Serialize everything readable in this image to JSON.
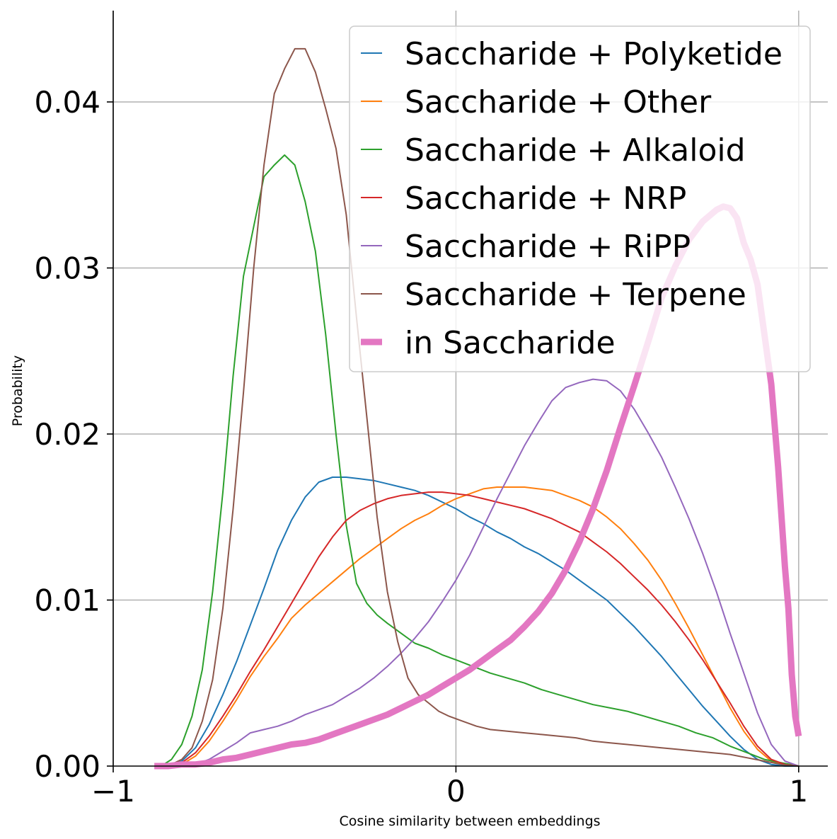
{
  "chart_data": {
    "type": "line",
    "xlabel": "Cosine similarity between embeddings",
    "ylabel": "Probability",
    "xlim": [
      -1,
      1.085
    ],
    "ylim": [
      0,
      0.0455
    ],
    "xticks": [
      {
        "v": -1,
        "label": "−1"
      },
      {
        "v": 0,
        "label": "0"
      },
      {
        "v": 1,
        "label": "1"
      }
    ],
    "yticks": [
      {
        "v": 0,
        "label": "0.00"
      },
      {
        "v": 0.01,
        "label": "0.01"
      },
      {
        "v": 0.02,
        "label": "0.02"
      },
      {
        "v": 0.03,
        "label": "0.03"
      },
      {
        "v": 0.04,
        "label": "0.04"
      }
    ],
    "grid": true,
    "legend_position": "top-right",
    "series": [
      {
        "name": "Saccharide + Polyketide",
        "color": "#1f77b4",
        "width": 2,
        "x": [
          -0.88,
          -0.84,
          -0.8,
          -0.76,
          -0.72,
          -0.68,
          -0.64,
          -0.6,
          -0.56,
          -0.52,
          -0.48,
          -0.44,
          -0.4,
          -0.36,
          -0.32,
          -0.28,
          -0.24,
          -0.2,
          -0.16,
          -0.12,
          -0.08,
          -0.04,
          0,
          0.04,
          0.08,
          0.12,
          0.16,
          0.2,
          0.24,
          0.28,
          0.32,
          0.36,
          0.4,
          0.44,
          0.48,
          0.52,
          0.56,
          0.6,
          0.64,
          0.68,
          0.72,
          0.76,
          0.8,
          0.84,
          0.88,
          0.92,
          0.96,
          1.0
        ],
        "y": [
          0,
          0,
          0.0003,
          0.0011,
          0.0025,
          0.0043,
          0.0063,
          0.0085,
          0.0107,
          0.013,
          0.0148,
          0.0162,
          0.0171,
          0.0174,
          0.0174,
          0.0173,
          0.0172,
          0.017,
          0.0168,
          0.0166,
          0.0163,
          0.0159,
          0.0155,
          0.015,
          0.0146,
          0.0141,
          0.0137,
          0.0132,
          0.0128,
          0.0123,
          0.0118,
          0.0112,
          0.0106,
          0.01,
          0.0092,
          0.0084,
          0.0075,
          0.0066,
          0.0056,
          0.0046,
          0.0036,
          0.0027,
          0.0018,
          0.001,
          0.0004,
          0.0001,
          0,
          0
        ]
      },
      {
        "name": "Saccharide + Other",
        "color": "#ff7f0e",
        "width": 2,
        "x": [
          -0.88,
          -0.84,
          -0.8,
          -0.76,
          -0.72,
          -0.68,
          -0.64,
          -0.6,
          -0.56,
          -0.52,
          -0.48,
          -0.44,
          -0.4,
          -0.36,
          -0.32,
          -0.28,
          -0.24,
          -0.2,
          -0.16,
          -0.12,
          -0.08,
          -0.04,
          0,
          0.04,
          0.08,
          0.12,
          0.16,
          0.2,
          0.24,
          0.28,
          0.32,
          0.36,
          0.4,
          0.44,
          0.48,
          0.52,
          0.56,
          0.6,
          0.64,
          0.68,
          0.72,
          0.76,
          0.8,
          0.84,
          0.88,
          0.92,
          0.96,
          1.0
        ],
        "y": [
          0,
          0,
          0.0001,
          0.0006,
          0.0015,
          0.0027,
          0.004,
          0.0054,
          0.0066,
          0.0077,
          0.0089,
          0.0097,
          0.0104,
          0.0111,
          0.0118,
          0.0125,
          0.0131,
          0.0137,
          0.0143,
          0.0148,
          0.0152,
          0.0157,
          0.0161,
          0.0164,
          0.0167,
          0.0168,
          0.0168,
          0.0168,
          0.0167,
          0.0166,
          0.0163,
          0.016,
          0.0156,
          0.015,
          0.0143,
          0.0134,
          0.0124,
          0.0112,
          0.0098,
          0.0083,
          0.0067,
          0.0051,
          0.0035,
          0.0021,
          0.001,
          0.0003,
          0.0001,
          0
        ]
      },
      {
        "name": "Saccharide + Alkaloid",
        "color": "#2ca02c",
        "width": 2,
        "x": [
          -0.86,
          -0.83,
          -0.8,
          -0.77,
          -0.74,
          -0.71,
          -0.68,
          -0.65,
          -0.62,
          -0.59,
          -0.56,
          -0.53,
          -0.5,
          -0.47,
          -0.44,
          -0.41,
          -0.38,
          -0.35,
          -0.32,
          -0.29,
          -0.26,
          -0.23,
          -0.2,
          -0.16,
          -0.12,
          -0.08,
          -0.04,
          0,
          0.05,
          0.1,
          0.15,
          0.2,
          0.25,
          0.3,
          0.35,
          0.4,
          0.45,
          0.5,
          0.55,
          0.6,
          0.65,
          0.7,
          0.75,
          0.8,
          0.85,
          0.9,
          0.95,
          1.0
        ],
        "y": [
          0,
          0.0004,
          0.0013,
          0.003,
          0.0058,
          0.0105,
          0.0165,
          0.0235,
          0.0295,
          0.0325,
          0.0355,
          0.0362,
          0.0368,
          0.0362,
          0.034,
          0.031,
          0.026,
          0.02,
          0.0145,
          0.011,
          0.0098,
          0.0091,
          0.0086,
          0.008,
          0.0074,
          0.0071,
          0.0067,
          0.0064,
          0.006,
          0.0056,
          0.0053,
          0.005,
          0.0046,
          0.0043,
          0.004,
          0.0037,
          0.0035,
          0.0033,
          0.003,
          0.0027,
          0.0024,
          0.002,
          0.0017,
          0.0012,
          0.0008,
          0.0004,
          0.0002,
          0
        ]
      },
      {
        "name": "Saccharide + NRP",
        "color": "#d62728",
        "width": 2,
        "x": [
          -0.88,
          -0.84,
          -0.8,
          -0.76,
          -0.72,
          -0.68,
          -0.64,
          -0.6,
          -0.56,
          -0.52,
          -0.48,
          -0.44,
          -0.4,
          -0.36,
          -0.32,
          -0.28,
          -0.24,
          -0.2,
          -0.16,
          -0.12,
          -0.08,
          -0.04,
          0,
          0.04,
          0.08,
          0.12,
          0.16,
          0.2,
          0.24,
          0.28,
          0.32,
          0.36,
          0.4,
          0.44,
          0.48,
          0.52,
          0.56,
          0.6,
          0.64,
          0.68,
          0.72,
          0.76,
          0.8,
          0.84,
          0.88,
          0.92,
          0.96,
          1.0
        ],
        "y": [
          0,
          0,
          0.0002,
          0.0008,
          0.0018,
          0.003,
          0.0043,
          0.0057,
          0.007,
          0.0084,
          0.0098,
          0.0112,
          0.0126,
          0.0138,
          0.0148,
          0.0154,
          0.0158,
          0.0161,
          0.0163,
          0.0164,
          0.0165,
          0.0165,
          0.0164,
          0.0163,
          0.0161,
          0.0159,
          0.0157,
          0.0155,
          0.0152,
          0.0149,
          0.0145,
          0.0141,
          0.0135,
          0.0129,
          0.0122,
          0.0114,
          0.0106,
          0.0097,
          0.0087,
          0.0076,
          0.0064,
          0.0051,
          0.0038,
          0.0024,
          0.0012,
          0.0004,
          0.0001,
          0
        ]
      },
      {
        "name": "Saccharide + RiPP",
        "color": "#9467bd",
        "width": 2,
        "x": [
          -0.88,
          -0.84,
          -0.8,
          -0.76,
          -0.72,
          -0.68,
          -0.64,
          -0.6,
          -0.56,
          -0.52,
          -0.48,
          -0.44,
          -0.4,
          -0.36,
          -0.32,
          -0.28,
          -0.24,
          -0.2,
          -0.16,
          -0.12,
          -0.08,
          -0.04,
          0,
          0.04,
          0.08,
          0.12,
          0.16,
          0.2,
          0.24,
          0.28,
          0.32,
          0.36,
          0.4,
          0.44,
          0.48,
          0.52,
          0.56,
          0.6,
          0.64,
          0.68,
          0.72,
          0.76,
          0.8,
          0.84,
          0.88,
          0.92,
          0.96,
          1.0
        ],
        "y": [
          0,
          0,
          0,
          0.0001,
          0.0004,
          0.0009,
          0.0014,
          0.002,
          0.0022,
          0.0024,
          0.0027,
          0.0031,
          0.0034,
          0.0037,
          0.0042,
          0.0047,
          0.0053,
          0.006,
          0.0068,
          0.0077,
          0.0087,
          0.0099,
          0.0112,
          0.0127,
          0.0144,
          0.0161,
          0.0177,
          0.0193,
          0.0207,
          0.022,
          0.0228,
          0.0231,
          0.0233,
          0.0232,
          0.0226,
          0.0215,
          0.0201,
          0.0186,
          0.0168,
          0.0149,
          0.0128,
          0.0105,
          0.008,
          0.0056,
          0.0032,
          0.0013,
          0.0003,
          0
        ]
      },
      {
        "name": "Saccharide + Terpene",
        "color": "#8c564b",
        "width": 2,
        "x": [
          -0.86,
          -0.83,
          -0.8,
          -0.77,
          -0.74,
          -0.71,
          -0.68,
          -0.65,
          -0.62,
          -0.59,
          -0.56,
          -0.53,
          -0.5,
          -0.47,
          -0.44,
          -0.41,
          -0.38,
          -0.35,
          -0.32,
          -0.29,
          -0.26,
          -0.23,
          -0.2,
          -0.17,
          -0.14,
          -0.11,
          -0.08,
          -0.05,
          -0.02,
          0.02,
          0.06,
          0.1,
          0.15,
          0.2,
          0.25,
          0.3,
          0.35,
          0.4,
          0.45,
          0.5,
          0.55,
          0.6,
          0.65,
          0.7,
          0.75,
          0.8,
          0.85,
          0.9,
          0.95,
          1.0
        ],
        "y": [
          0,
          0.0001,
          0.0004,
          0.0011,
          0.0027,
          0.0052,
          0.0095,
          0.0155,
          0.0225,
          0.03,
          0.0362,
          0.0405,
          0.042,
          0.0432,
          0.0432,
          0.0418,
          0.0396,
          0.0372,
          0.0332,
          0.027,
          0.021,
          0.015,
          0.0105,
          0.0075,
          0.0053,
          0.0043,
          0.0038,
          0.0033,
          0.003,
          0.0027,
          0.0024,
          0.0022,
          0.0021,
          0.002,
          0.0019,
          0.0018,
          0.0017,
          0.0015,
          0.0014,
          0.0013,
          0.0012,
          0.0011,
          0.001,
          0.0009,
          0.0008,
          0.0007,
          0.0005,
          0.0003,
          0.0001,
          0
        ]
      },
      {
        "name": "in Saccharide",
        "color": "#e377c2",
        "width": 9,
        "x": [
          -0.88,
          -0.84,
          -0.8,
          -0.76,
          -0.72,
          -0.68,
          -0.64,
          -0.6,
          -0.56,
          -0.52,
          -0.48,
          -0.44,
          -0.4,
          -0.36,
          -0.32,
          -0.28,
          -0.24,
          -0.2,
          -0.16,
          -0.12,
          -0.08,
          -0.04,
          0,
          0.04,
          0.08,
          0.12,
          0.16,
          0.2,
          0.24,
          0.28,
          0.32,
          0.36,
          0.4,
          0.44,
          0.48,
          0.52,
          0.56,
          0.6,
          0.64,
          0.68,
          0.72,
          0.76,
          0.78,
          0.8,
          0.82,
          0.84,
          0.86,
          0.88,
          0.9,
          0.92,
          0.94,
          0.96,
          0.97,
          0.98,
          0.99,
          1.0
        ],
        "y": [
          0,
          0,
          0.0001,
          0.0001,
          0.0002,
          0.0004,
          0.0005,
          0.0007,
          0.0009,
          0.0011,
          0.0013,
          0.0014,
          0.0016,
          0.0019,
          0.0022,
          0.0025,
          0.0028,
          0.0031,
          0.0035,
          0.0039,
          0.0043,
          0.0048,
          0.0053,
          0.0058,
          0.0064,
          0.007,
          0.0076,
          0.0084,
          0.0093,
          0.0104,
          0.0118,
          0.0135,
          0.0155,
          0.0178,
          0.0204,
          0.0229,
          0.0255,
          0.0282,
          0.0301,
          0.0317,
          0.0328,
          0.0335,
          0.0337,
          0.0336,
          0.033,
          0.0315,
          0.0305,
          0.029,
          0.026,
          0.023,
          0.018,
          0.012,
          0.0095,
          0.0055,
          0.003,
          0.0018
        ]
      }
    ]
  }
}
